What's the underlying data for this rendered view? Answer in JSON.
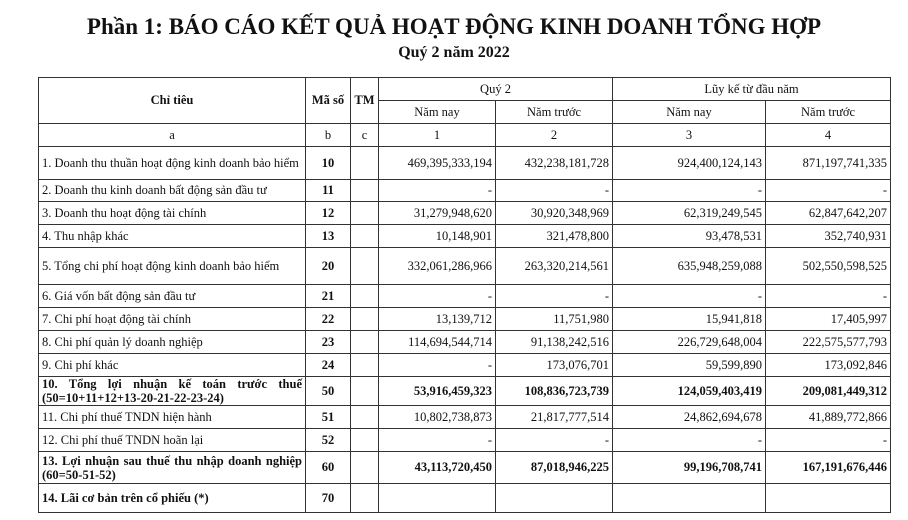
{
  "title": "Phần 1: BÁO CÁO KẾT QUẢ HOẠT ĐỘNG KINH DOANH TỔNG HỢP",
  "subtitle": "Quý 2 năm 2022",
  "headers": {
    "chi_tieu": "Chỉ tiêu",
    "ma_so": "Mã số",
    "tm": "TM",
    "quy2": "Quý 2",
    "luy_ke": "Lũy kế từ đầu năm",
    "nam_nay": "Năm nay",
    "nam_truoc": "Năm trước",
    "idx": [
      "a",
      "b",
      "c",
      "1",
      "2",
      "3",
      "4"
    ]
  },
  "rows": [
    {
      "label": "1.  Doanh thu thuần hoạt động kinh doanh bảo hiểm",
      "code": "10",
      "v": [
        "469,395,333,194",
        "432,238,181,728",
        "924,400,124,143",
        "871,197,741,335"
      ]
    },
    {
      "label": "2. Doanh thu kinh doanh bất động sản đầu tư",
      "code": "11",
      "v": [
        "-",
        "-",
        "-",
        "-"
      ]
    },
    {
      "label": "3. Doanh thu hoạt động tài chính",
      "code": "12",
      "v": [
        "31,279,948,620",
        "30,920,348,969",
        "62,319,249,545",
        "62,847,642,207"
      ]
    },
    {
      "label": "4. Thu nhập khác",
      "code": "13",
      "v": [
        "10,148,901",
        "321,478,800",
        "93,478,531",
        "352,740,931"
      ]
    },
    {
      "label": "5. Tổng chi phí hoạt động kinh doanh bảo hiểm",
      "code": "20",
      "v": [
        "332,061,286,966",
        "263,320,214,561",
        "635,948,259,088",
        "502,550,598,525"
      ]
    },
    {
      "label": "6. Giá vốn bất động sản đầu tư",
      "code": "21",
      "v": [
        "-",
        "-",
        "-",
        "-"
      ]
    },
    {
      "label": "7. Chi phí hoạt động tài chính",
      "code": "22",
      "v": [
        "13,139,712",
        "11,751,980",
        "15,941,818",
        "17,405,997"
      ]
    },
    {
      "label": "8. Chi phí quản lý doanh nghiệp",
      "code": "23",
      "v": [
        "114,694,544,714",
        "91,138,242,516",
        "226,729,648,004",
        "222,575,577,793"
      ]
    },
    {
      "label": "9. Chi phí khác",
      "code": "24",
      "v": [
        "-",
        "173,076,701",
        "59,599,890",
        "173,092,846"
      ]
    },
    {
      "label": "10. Tổng lợi nhuận kế toán trước thuế (50=10+11+12+13-20-21-22-23-24)",
      "code": "50",
      "bold": true,
      "v": [
        "53,916,459,323",
        "108,836,723,739",
        "124,059,403,419",
        "209,081,449,312"
      ]
    },
    {
      "label": "11. Chi phí thuế TNDN hiện hành",
      "code": "51",
      "v": [
        "10,802,738,873",
        "21,817,777,514",
        "24,862,694,678",
        "41,889,772,866"
      ]
    },
    {
      "label": "12. Chi phí thuế TNDN hoãn lại",
      "code": "52",
      "v": [
        "-",
        "-",
        "-",
        "-"
      ]
    },
    {
      "label": "13. Lợi nhuận sau thuế thu nhập doanh nghiệp (60=50-51-52)",
      "code": "60",
      "bold": true,
      "v": [
        "43,113,720,450",
        "87,018,946,225",
        "99,196,708,741",
        "167,191,676,446"
      ]
    },
    {
      "label": "14. Lãi cơ bản trên cổ phiếu (*)",
      "code": "70",
      "bold": true,
      "v": [
        "",
        "",
        "",
        ""
      ]
    }
  ]
}
